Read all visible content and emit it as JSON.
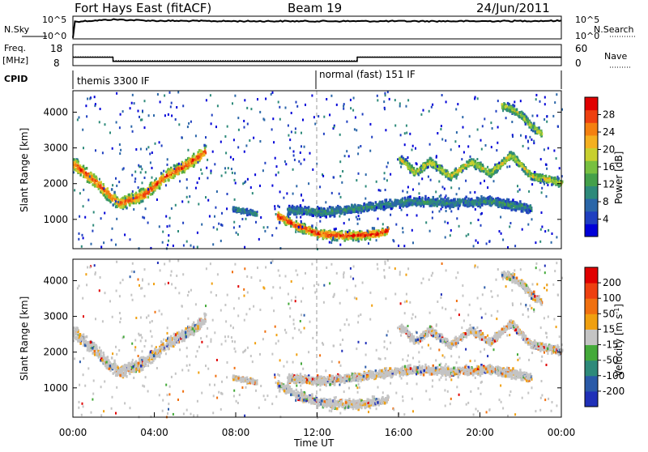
{
  "header": {
    "station": "Fort Hays East (fitACF)",
    "beam": "Beam 19",
    "date": "24/Jun/2011"
  },
  "chart_data": [
    {
      "type": "line",
      "panel": "noise",
      "left_label": "N.Sky",
      "right_label": "N.Search",
      "left_ticks": [
        "10^5",
        "10^0"
      ],
      "right_ticks": [
        "10^5",
        "10^0"
      ],
      "series": [
        {
          "name": "N.Sky",
          "style": "solid",
          "x_hours": [
            0,
            0.1,
            2,
            4,
            8,
            12,
            16,
            20,
            24
          ],
          "log10_values": [
            0.3,
            4.1,
            4.6,
            4.3,
            4.2,
            4.2,
            4.2,
            4.2,
            4.3
          ]
        },
        {
          "name": "N.Search",
          "style": "dotted",
          "x_hours": [
            0,
            24
          ],
          "log10_values": [
            0,
            0
          ]
        }
      ]
    },
    {
      "type": "line",
      "panel": "frequency",
      "left_label_1": "Freq.",
      "left_label_2": "[MHz]",
      "right_label": "Nave",
      "left_ticks": [
        "18",
        "8"
      ],
      "right_ticks": [
        "60",
        "0"
      ],
      "series": [
        {
          "name": "Freq.",
          "style": "solid",
          "x_hours": [
            0,
            1.97,
            1.97,
            13.97,
            13.97,
            24
          ],
          "values": [
            12,
            12,
            10,
            10,
            12,
            12
          ]
        },
        {
          "name": "Nave",
          "style": "dotted",
          "x_hours": [
            0,
            1.97,
            1.97,
            13.97,
            13.97,
            24
          ],
          "values": [
            25,
            25,
            15,
            15,
            25,
            25
          ]
        }
      ]
    },
    {
      "type": "table",
      "panel": "cpid",
      "label": "CPID",
      "segments": [
        {
          "start_hour": 0,
          "text": "themis 3300 IF"
        },
        {
          "start_hour": 12,
          "text": "normal (fast) 151 IF"
        }
      ]
    },
    {
      "type": "heatmap",
      "panel": "power",
      "ylabel": "Slant Range [km]",
      "ylim": [
        180,
        4600
      ],
      "yticks": [
        1000,
        2000,
        3000,
        4000
      ],
      "colorbar_label": "Power [dB]",
      "colorbar_ticks": [
        "28",
        "24",
        "20",
        "16",
        "12",
        "8",
        "4"
      ],
      "colormap": [
        "#0000d8",
        "#1f3fc0",
        "#2a66a8",
        "#2e8a7a",
        "#44a04a",
        "#78c040",
        "#c8d030",
        "#f4b020",
        "#f48010",
        "#ee4010",
        "#e00000"
      ],
      "features": [
        {
          "x_hours": [
            0.0,
            0.5,
            1.0,
            1.5,
            2.2,
            2.8,
            3.5,
            4.5,
            5.5,
            6.5
          ],
          "center_km": [
            2550,
            2300,
            2100,
            1800,
            1450,
            1550,
            1700,
            2200,
            2500,
            2900
          ],
          "width_km": 500,
          "peak_db": 28
        },
        {
          "x_hours": [
            10.0,
            11.0,
            12.0,
            13.0,
            14.0,
            15.0,
            15.5
          ],
          "center_km": [
            1100,
            800,
            600,
            550,
            550,
            600,
            700
          ],
          "width_km": 350,
          "peak_db": 30
        },
        {
          "x_hours": [
            10.5,
            12.5,
            14.5,
            16.5,
            18.5,
            20.5,
            22.5
          ],
          "center_km": [
            1250,
            1200,
            1350,
            1500,
            1450,
            1500,
            1300
          ],
          "width_km": 350,
          "peak_db": 10
        },
        {
          "x_hours": [
            16.0,
            16.8,
            17.5,
            18.5,
            19.5,
            20.5,
            21.5,
            22.5,
            23.5,
            24.0
          ],
          "center_km": [
            2700,
            2300,
            2600,
            2200,
            2600,
            2300,
            2800,
            2200,
            2100,
            2000
          ],
          "width_km": 300,
          "peak_db": 20
        },
        {
          "x_hours": [
            21.0,
            21.5,
            22.0,
            22.5,
            23.0
          ],
          "center_km": [
            4200,
            4100,
            3900,
            3600,
            3400
          ],
          "width_km": 300,
          "peak_db": 18
        },
        {
          "x_hours": [
            7.8,
            8.2,
            8.6,
            9.0
          ],
          "center_km": [
            1300,
            1250,
            1200,
            1150
          ],
          "width_km": 200,
          "peak_db": 10
        }
      ]
    },
    {
      "type": "heatmap",
      "panel": "velocity",
      "xlabel": "Time UT",
      "ylabel": "Slant Range [km]",
      "xlim_hours": [
        0,
        24
      ],
      "ylim": [
        180,
        4600
      ],
      "xticks": [
        "00:00",
        "04:00",
        "08:00",
        "12:00",
        "16:00",
        "20:00",
        "00:00"
      ],
      "yticks": [
        1000,
        2000,
        3000,
        4000
      ],
      "colorbar_label": "Velocity [m s^-1]",
      "colorbar_ticks": [
        "200",
        "100",
        "50",
        "15",
        "-15",
        "-50",
        "-100",
        "-200"
      ],
      "colormap": [
        "#2030b8",
        "#2a5aa8",
        "#2e8a7a",
        "#44aa3a",
        "#c4c4c4",
        "#f0a010",
        "#f07010",
        "#ee4010",
        "#e00000"
      ],
      "dominant_value": "ground scatter (-15 to 15)"
    }
  ]
}
